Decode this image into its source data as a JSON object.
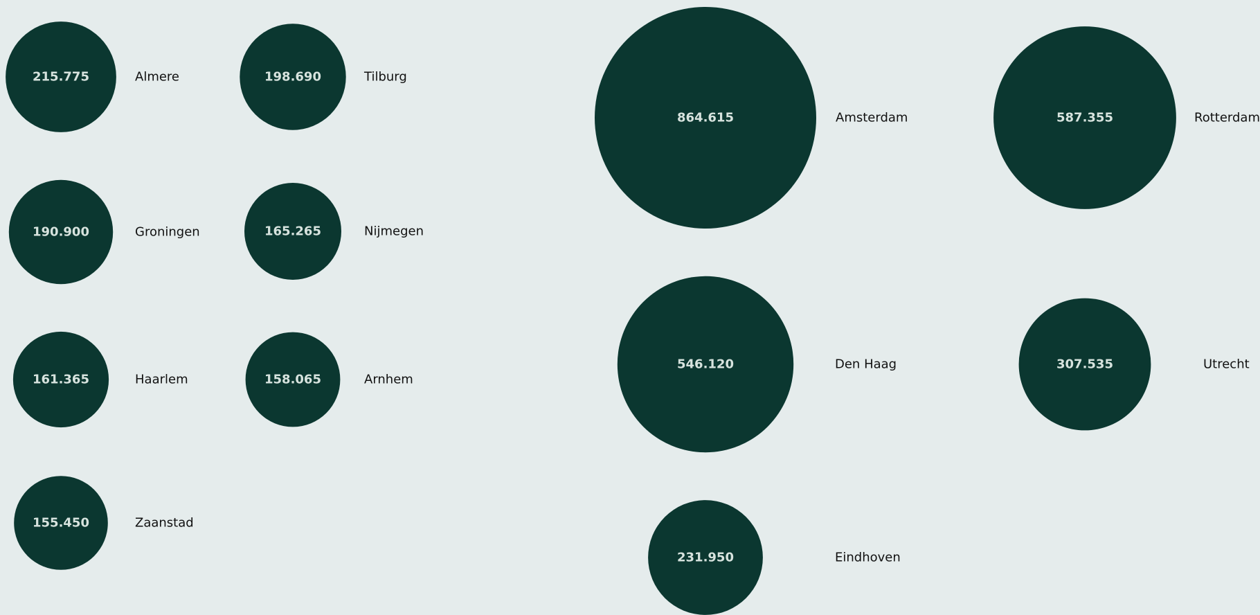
{
  "colors": {
    "background": "#e5ecec",
    "bubble": "#0b3730",
    "value_text": "#d7e3de",
    "label_text": "#111111"
  },
  "chart_data": {
    "type": "bubble",
    "title": "",
    "number_format": "dot-thousands",
    "cities": [
      {
        "name": "Amsterdam",
        "value": 864615,
        "label": "864.615"
      },
      {
        "name": "Rotterdam",
        "value": 587355,
        "label": "587.355"
      },
      {
        "name": "Den Haag",
        "value": 546120,
        "label": "546.120"
      },
      {
        "name": "Utrecht",
        "value": 307535,
        "label": "307.535"
      },
      {
        "name": "Eindhoven",
        "value": 231950,
        "label": "231.950"
      },
      {
        "name": "Almere",
        "value": 215775,
        "label": "215.775"
      },
      {
        "name": "Tilburg",
        "value": 198690,
        "label": "198.690"
      },
      {
        "name": "Groningen",
        "value": 190900,
        "label": "190.900"
      },
      {
        "name": "Nijmegen",
        "value": 165265,
        "label": "165.265"
      },
      {
        "name": "Haarlem",
        "value": 161365,
        "label": "161.365"
      },
      {
        "name": "Arnhem",
        "value": 158065,
        "label": "158.065"
      },
      {
        "name": "Zaanstad",
        "value": 155450,
        "label": "155.450"
      }
    ]
  }
}
